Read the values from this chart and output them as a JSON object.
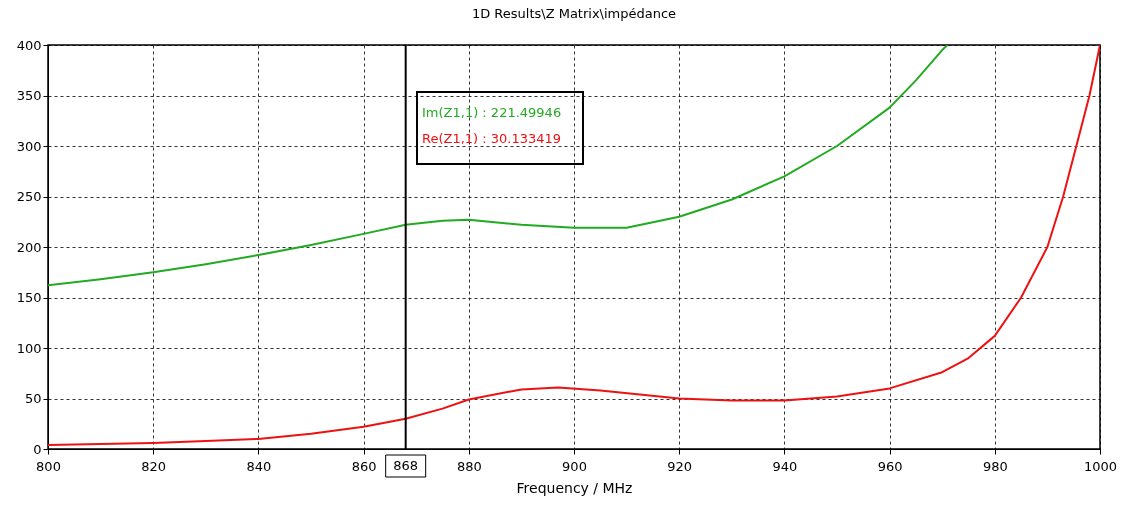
{
  "chart_data": {
    "type": "line",
    "title": "1D Results\\Z Matrix\\impédance",
    "xlabel": "Frequency / MHz",
    "xlim": [
      800,
      1000
    ],
    "xticks": [
      800,
      820,
      840,
      860,
      880,
      900,
      920,
      940,
      960,
      980,
      1000
    ],
    "ylim": [
      0,
      400
    ],
    "yticks": [
      0,
      50,
      100,
      150,
      200,
      250,
      300,
      350,
      400
    ],
    "grid": true,
    "line_style": "solid",
    "legend": false,
    "series": [
      {
        "color": "#22aa22",
        "x": [
          800,
          810,
          820,
          830,
          840,
          850,
          860,
          868,
          875,
          880,
          890,
          900,
          910,
          920,
          930,
          940,
          950,
          960,
          965,
          970,
          971
        ],
        "values": [
          162,
          168,
          175,
          183,
          192,
          202,
          213,
          222,
          226,
          227,
          222,
          219,
          219,
          230,
          247,
          270,
          300,
          338,
          365,
          395,
          400
        ]
      },
      {
        "color": "#ee1111",
        "x": [
          800,
          810,
          820,
          830,
          840,
          850,
          860,
          868,
          875,
          880,
          890,
          897,
          905,
          920,
          930,
          940,
          950,
          960,
          970,
          975,
          980,
          985,
          990,
          993,
          996,
          998,
          1000
        ],
        "values": [
          4,
          5,
          6,
          8,
          10,
          15,
          22,
          30,
          40,
          49,
          59,
          61,
          58,
          50,
          48,
          48,
          52,
          60,
          76,
          90,
          112,
          150,
          200,
          250,
          310,
          350,
          400
        ]
      }
    ],
    "ref_lines": [
      {
        "axis": "x",
        "value": 868,
        "label": "868",
        "color": "#000000"
      }
    ],
    "annotations": [
      "Im(Z1,1) : 221.49946",
      "Re(Z1,1) : 30.133419"
    ]
  }
}
